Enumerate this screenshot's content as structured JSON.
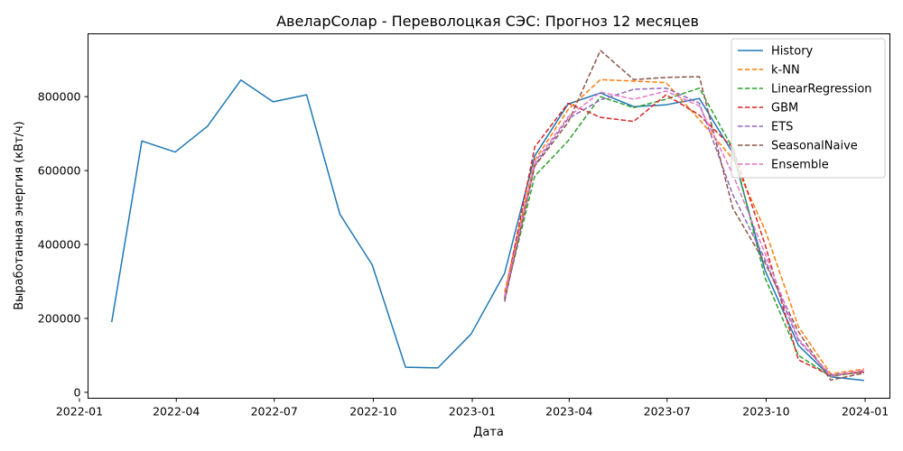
{
  "chart_data": {
    "type": "line",
    "title": "АвеларСолар - Переволоцкая СЭС: Прогноз 12 месяцев",
    "xlabel": "Дата",
    "ylabel": "Выработанная энергия (кВт/ч)",
    "xlim": [
      "2022-01-09",
      "2024-01-24"
    ],
    "ylim": [
      -16000,
      970000
    ],
    "x_ticks": [
      "2022-01",
      "2022-04",
      "2022-07",
      "2022-10",
      "2023-01",
      "2023-04",
      "2023-07",
      "2023-10",
      "2024-01"
    ],
    "y_ticks": [
      0,
      200000,
      400000,
      600000,
      800000
    ],
    "y_tick_labels": [
      "0",
      "200000",
      "400000",
      "600000",
      "800000"
    ],
    "legend_position": "top-right",
    "grid": false,
    "series": [
      {
        "name": "History",
        "color": "#1f77b4",
        "style": "solid",
        "x": [
          "2022-01-31",
          "2022-02-28",
          "2022-03-31",
          "2022-04-30",
          "2022-05-31",
          "2022-06-30",
          "2022-07-31",
          "2022-08-31",
          "2022-09-30",
          "2022-10-31",
          "2022-11-30",
          "2022-12-31",
          "2023-01-31",
          "2023-02-28",
          "2023-03-31",
          "2023-04-30",
          "2023-05-31",
          "2023-06-30",
          "2023-07-31",
          "2023-08-31",
          "2023-09-30",
          "2023-10-31",
          "2023-11-30",
          "2023-12-31"
        ],
        "values": [
          190000,
          680000,
          650000,
          720000,
          845000,
          786000,
          805000,
          482000,
          345000,
          68000,
          66000,
          158000,
          322000,
          640000,
          780000,
          810000,
          773000,
          778000,
          795000,
          648000,
          330000,
          127000,
          42000,
          32000
        ]
      },
      {
        "name": "k-NN",
        "color": "#ff7f0e",
        "style": "dashed",
        "x": [
          "2023-01-31",
          "2023-02-28",
          "2023-03-31",
          "2023-04-30",
          "2023-05-31",
          "2023-06-30",
          "2023-07-31",
          "2023-08-31",
          "2023-09-30",
          "2023-10-31",
          "2023-11-30",
          "2023-12-31"
        ],
        "values": [
          270000,
          628000,
          765000,
          846000,
          842000,
          838000,
          738000,
          632000,
          440000,
          178000,
          50000,
          63000
        ]
      },
      {
        "name": "LinearRegression",
        "color": "#2ca02c",
        "style": "dashed",
        "x": [
          "2023-01-31",
          "2023-02-28",
          "2023-03-31",
          "2023-04-30",
          "2023-05-31",
          "2023-06-30",
          "2023-07-31",
          "2023-08-31",
          "2023-09-30",
          "2023-10-31",
          "2023-11-30",
          "2023-12-31"
        ],
        "values": [
          255000,
          585000,
          680000,
          800000,
          770000,
          793000,
          823000,
          660000,
          310000,
          100000,
          43000,
          56000
        ]
      },
      {
        "name": "GBM",
        "color": "#d62728",
        "style": "dashed",
        "x": [
          "2023-01-31",
          "2023-02-28",
          "2023-03-31",
          "2023-04-30",
          "2023-05-31",
          "2023-06-30",
          "2023-07-31",
          "2023-08-31",
          "2023-09-30",
          "2023-10-31",
          "2023-11-30",
          "2023-12-31"
        ],
        "values": [
          258000,
          664000,
          782000,
          744000,
          733000,
          805000,
          750000,
          662000,
          400000,
          88000,
          45000,
          55000
        ]
      },
      {
        "name": "ETS",
        "color": "#9467bd",
        "style": "dashed",
        "x": [
          "2023-01-31",
          "2023-02-28",
          "2023-03-31",
          "2023-04-30",
          "2023-05-31",
          "2023-06-30",
          "2023-07-31",
          "2023-08-31",
          "2023-09-30",
          "2023-10-31",
          "2023-11-30",
          "2023-12-31"
        ],
        "values": [
          245000,
          615000,
          740000,
          791000,
          820000,
          823000,
          782000,
          535000,
          360000,
          140000,
          47000,
          58000
        ]
      },
      {
        "name": "SeasonalNaive",
        "color": "#8c564b",
        "style": "dashed",
        "x": [
          "2023-01-31",
          "2023-02-28",
          "2023-03-31",
          "2023-04-30",
          "2023-05-31",
          "2023-06-30",
          "2023-07-31",
          "2023-08-31",
          "2023-09-30",
          "2023-10-31",
          "2023-11-30",
          "2023-12-31"
        ],
        "values": [
          250000,
          612000,
          730000,
          925000,
          846000,
          852000,
          854000,
          498000,
          350000,
          164000,
          33000,
          52000
        ]
      },
      {
        "name": "Ensemble",
        "color": "#e377c2",
        "style": "dashed",
        "x": [
          "2023-01-31",
          "2023-02-28",
          "2023-03-31",
          "2023-04-30",
          "2023-05-31",
          "2023-06-30",
          "2023-07-31",
          "2023-08-31",
          "2023-09-30",
          "2023-10-31",
          "2023-11-30",
          "2023-12-31"
        ],
        "values": [
          258000,
          622000,
          745000,
          812000,
          793000,
          815000,
          775000,
          590000,
          376000,
          145000,
          43000,
          60000
        ]
      }
    ]
  }
}
